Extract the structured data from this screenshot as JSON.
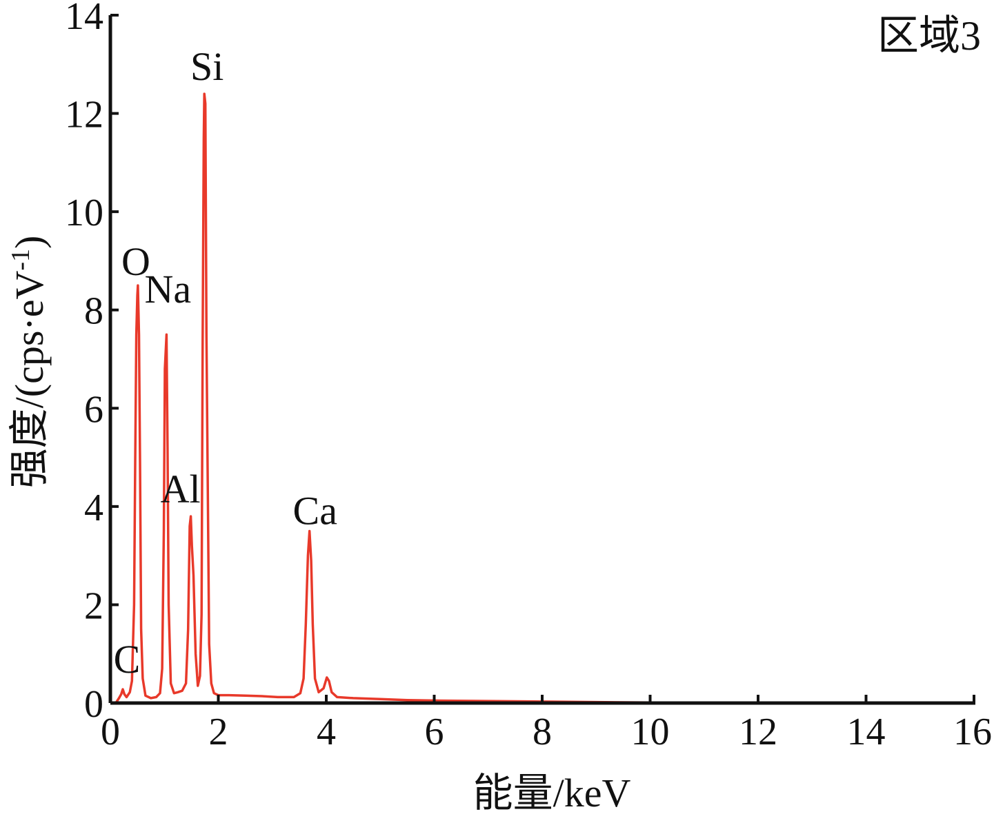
{
  "chart_data": {
    "type": "line",
    "region_label": "区域3",
    "xlabel": "能量/keV",
    "ylabel": "强度/(cps·eV",
    "ylabel_sup": "-1",
    "ylabel_close": ")",
    "xlim": [
      0,
      16
    ],
    "ylim": [
      0,
      14
    ],
    "xticks": [
      0,
      2,
      4,
      6,
      8,
      10,
      12,
      14,
      16
    ],
    "yticks": [
      0,
      2,
      4,
      6,
      8,
      10,
      12,
      14
    ],
    "xtick_labels": [
      "0",
      "2",
      "4",
      "6",
      "8",
      "10",
      "12",
      "14",
      "16"
    ],
    "ytick_labels": [
      "0",
      "2",
      "4",
      "6",
      "8",
      "10",
      "12",
      "14"
    ],
    "grid": false,
    "line_color": "#e8392a",
    "peaks": [
      {
        "label": "C",
        "x": 0.23,
        "y": 0.28
      },
      {
        "label": "O",
        "x": 0.51,
        "y": 8.5
      },
      {
        "label": "Na",
        "x": 1.04,
        "y": 7.5
      },
      {
        "label": "Al",
        "x": 1.49,
        "y": 3.8
      },
      {
        "label": "Si",
        "x": 1.74,
        "y": 12.4
      },
      {
        "label": "Ca",
        "x": 3.69,
        "y": 3.5
      }
    ],
    "series": [
      {
        "points": [
          [
            0.1,
            0.0
          ],
          [
            0.16,
            0.1
          ],
          [
            0.2,
            0.18
          ],
          [
            0.23,
            0.28
          ],
          [
            0.26,
            0.18
          ],
          [
            0.3,
            0.12
          ],
          [
            0.36,
            0.22
          ],
          [
            0.4,
            0.45
          ],
          [
            0.44,
            2.0
          ],
          [
            0.46,
            4.9
          ],
          [
            0.48,
            7.5
          ],
          [
            0.5,
            8.3
          ],
          [
            0.51,
            8.5
          ],
          [
            0.53,
            7.5
          ],
          [
            0.55,
            4.9
          ],
          [
            0.57,
            1.5
          ],
          [
            0.6,
            0.5
          ],
          [
            0.65,
            0.15
          ],
          [
            0.75,
            0.1
          ],
          [
            0.85,
            0.12
          ],
          [
            0.92,
            0.2
          ],
          [
            0.96,
            0.7
          ],
          [
            0.99,
            3.5
          ],
          [
            1.01,
            6.8
          ],
          [
            1.04,
            7.5
          ],
          [
            1.06,
            5.2
          ],
          [
            1.08,
            2.0
          ],
          [
            1.12,
            0.4
          ],
          [
            1.18,
            0.2
          ],
          [
            1.25,
            0.22
          ],
          [
            1.33,
            0.25
          ],
          [
            1.4,
            0.4
          ],
          [
            1.44,
            1.5
          ],
          [
            1.47,
            3.6
          ],
          [
            1.49,
            3.8
          ],
          [
            1.51,
            3.2
          ],
          [
            1.54,
            2.6
          ],
          [
            1.58,
            1.0
          ],
          [
            1.62,
            0.35
          ],
          [
            1.66,
            0.55
          ],
          [
            1.69,
            1.8
          ],
          [
            1.71,
            7.4
          ],
          [
            1.73,
            11.5
          ],
          [
            1.74,
            12.4
          ],
          [
            1.76,
            12.2
          ],
          [
            1.78,
            7.5
          ],
          [
            1.8,
            4.9
          ],
          [
            1.83,
            1.2
          ],
          [
            1.87,
            0.4
          ],
          [
            1.92,
            0.2
          ],
          [
            2.0,
            0.16
          ],
          [
            2.2,
            0.16
          ],
          [
            2.5,
            0.15
          ],
          [
            2.8,
            0.14
          ],
          [
            3.1,
            0.12
          ],
          [
            3.4,
            0.12
          ],
          [
            3.52,
            0.2
          ],
          [
            3.58,
            0.5
          ],
          [
            3.62,
            1.6
          ],
          [
            3.66,
            3.0
          ],
          [
            3.69,
            3.5
          ],
          [
            3.72,
            2.9
          ],
          [
            3.75,
            1.6
          ],
          [
            3.79,
            0.5
          ],
          [
            3.86,
            0.22
          ],
          [
            3.95,
            0.3
          ],
          [
            4.01,
            0.52
          ],
          [
            4.05,
            0.45
          ],
          [
            4.1,
            0.22
          ],
          [
            4.2,
            0.12
          ],
          [
            4.5,
            0.1
          ],
          [
            5.0,
            0.08
          ],
          [
            5.5,
            0.06
          ],
          [
            6.0,
            0.05
          ],
          [
            7.0,
            0.04
          ],
          [
            8.0,
            0.03
          ],
          [
            9.0,
            0.02
          ],
          [
            10.0,
            0.01
          ],
          [
            12.0,
            0.0
          ],
          [
            14.0,
            0.0
          ],
          [
            14.4,
            0.0
          ]
        ]
      }
    ]
  }
}
